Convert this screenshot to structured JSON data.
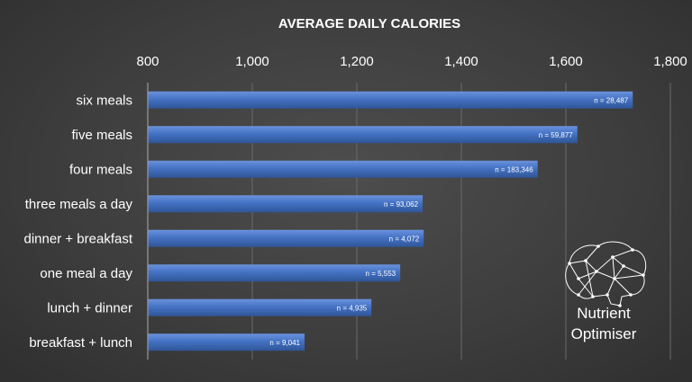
{
  "chart_data": {
    "type": "bar",
    "orientation": "horizontal",
    "title": "AVERAGE DAILY CALORIES",
    "xlim": [
      800,
      1800
    ],
    "x_ticks": [
      "800",
      "1,000",
      "1,200",
      "1,400",
      "1,600",
      "1,800"
    ],
    "x_tick_values": [
      800,
      1000,
      1200,
      1400,
      1600,
      1800
    ],
    "grid": true,
    "categories": [
      "six meals",
      "five meals",
      "four meals",
      "three meals a day",
      "dinner + breakfast",
      "one meal a day",
      "lunch + dinner",
      "breakfast + lunch"
    ],
    "values": [
      1728,
      1622,
      1546,
      1326,
      1328,
      1283,
      1228,
      1100
    ],
    "data_labels": [
      "n = 28,487",
      "n = 59,877",
      "n = 183,346",
      "n = 93,062",
      "n = 4,072",
      "n = 5,553",
      "n = 4,935",
      "n = 9,041"
    ],
    "bar_color": "#4472c4"
  },
  "logo": {
    "line1": "Nutrient",
    "line2": "Optimiser",
    "icon": "brain-network-icon"
  }
}
